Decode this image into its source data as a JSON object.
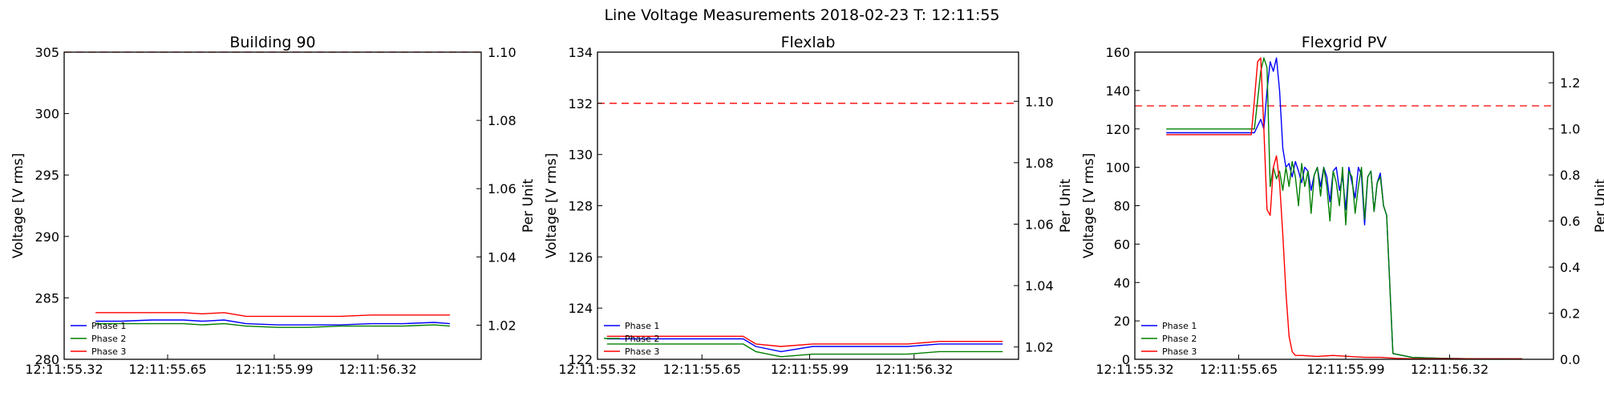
{
  "figure": {
    "title": "Line Voltage Measurements 2018-02-23 T: 12:11:55"
  },
  "chart_data": [
    {
      "type": "line",
      "title": "Building 90",
      "ylabel": "Voltage [V rms]",
      "y2label": "Per Unit",
      "xlim": [
        55.32,
        56.65
      ],
      "ylim": [
        280,
        305
      ],
      "y2lim": [
        1.01,
        1.1
      ],
      "xticks": [
        55.32,
        55.65,
        55.99,
        56.32
      ],
      "xticklabels": [
        "12:11:55.32",
        "12:11:55.65",
        "12:11:55.99",
        "12:11:56.32"
      ],
      "yticks": [
        280,
        285,
        290,
        295,
        300,
        305
      ],
      "y2ticks": [
        1.02,
        1.04,
        1.06,
        1.08,
        1.1
      ],
      "y2ticklabels": [
        "1.02",
        "1.04",
        "1.06",
        "1.08",
        "1.10"
      ],
      "reference_line": {
        "y": 305.0,
        "color": "#ff0000",
        "style": "dashed"
      },
      "legend": {
        "placement": "lower-left"
      },
      "series": [
        {
          "name": "Phase 1",
          "color": "#0000ff",
          "x": [
            55.42,
            55.5,
            55.6,
            55.7,
            55.76,
            55.83,
            55.9,
            56.0,
            56.1,
            56.2,
            56.3,
            56.4,
            56.5,
            56.55
          ],
          "y": [
            283.1,
            283.1,
            283.2,
            283.2,
            283.1,
            283.2,
            282.9,
            282.8,
            282.8,
            282.8,
            282.9,
            282.9,
            283.0,
            282.9
          ]
        },
        {
          "name": "Phase 2",
          "color": "#008000",
          "x": [
            55.42,
            55.5,
            55.6,
            55.7,
            55.76,
            55.83,
            55.9,
            56.0,
            56.1,
            56.2,
            56.3,
            56.4,
            56.5,
            56.55
          ],
          "y": [
            282.9,
            282.9,
            282.9,
            282.9,
            282.8,
            282.9,
            282.7,
            282.6,
            282.6,
            282.7,
            282.7,
            282.7,
            282.8,
            282.7
          ]
        },
        {
          "name": "Phase 3",
          "color": "#ff0000",
          "x": [
            55.42,
            55.5,
            55.6,
            55.7,
            55.76,
            55.83,
            55.9,
            56.0,
            56.1,
            56.2,
            56.3,
            56.4,
            56.5,
            56.55
          ],
          "y": [
            283.8,
            283.8,
            283.8,
            283.8,
            283.7,
            283.8,
            283.5,
            283.5,
            283.5,
            283.5,
            283.6,
            283.6,
            283.6,
            283.6
          ]
        }
      ]
    },
    {
      "type": "line",
      "title": "Flexlab",
      "ylabel": "Voltage [V rms]",
      "y2label": "Per Unit",
      "xlim": [
        55.32,
        56.65
      ],
      "ylim": [
        122,
        134
      ],
      "y2lim": [
        1.016,
        1.116
      ],
      "xticks": [
        55.32,
        55.65,
        55.99,
        56.32
      ],
      "xticklabels": [
        "12:11:55.32",
        "12:11:55.65",
        "12:11:55.99",
        "12:11:56.32"
      ],
      "yticks": [
        122,
        124,
        126,
        128,
        130,
        132,
        134
      ],
      "y2ticks": [
        1.02,
        1.04,
        1.06,
        1.08,
        1.1
      ],
      "y2ticklabels": [
        "1.02",
        "1.04",
        "1.06",
        "1.08",
        "1.10"
      ],
      "reference_line": {
        "y": 132.0,
        "color": "#ff0000",
        "style": "dashed"
      },
      "legend": {
        "placement": "lower-left"
      },
      "series": [
        {
          "name": "Phase 1",
          "color": "#0000ff",
          "x": [
            55.35,
            55.45,
            55.55,
            55.65,
            55.72,
            55.78,
            55.82,
            55.9,
            56.0,
            56.1,
            56.2,
            56.3,
            56.4,
            56.5,
            56.6
          ],
          "y": [
            122.8,
            122.8,
            122.8,
            122.8,
            122.8,
            122.8,
            122.5,
            122.3,
            122.5,
            122.5,
            122.5,
            122.5,
            122.6,
            122.6,
            122.6
          ]
        },
        {
          "name": "Phase 2",
          "color": "#008000",
          "x": [
            55.35,
            55.45,
            55.55,
            55.65,
            55.72,
            55.78,
            55.82,
            55.9,
            56.0,
            56.1,
            56.2,
            56.3,
            56.4,
            56.5,
            56.6
          ],
          "y": [
            122.6,
            122.6,
            122.6,
            122.6,
            122.6,
            122.6,
            122.3,
            122.1,
            122.2,
            122.2,
            122.2,
            122.2,
            122.3,
            122.3,
            122.3
          ]
        },
        {
          "name": "Phase 3",
          "color": "#ff0000",
          "x": [
            55.35,
            55.45,
            55.55,
            55.65,
            55.72,
            55.78,
            55.82,
            55.9,
            56.0,
            56.1,
            56.2,
            56.3,
            56.4,
            56.5,
            56.6
          ],
          "y": [
            122.9,
            122.9,
            122.9,
            122.9,
            122.9,
            122.9,
            122.6,
            122.5,
            122.6,
            122.6,
            122.6,
            122.6,
            122.7,
            122.7,
            122.7
          ]
        }
      ]
    },
    {
      "type": "line",
      "title": "Flexgrid PV",
      "ylabel": "Voltage [V rms]",
      "y2label": "Per Unit",
      "xlim": [
        55.32,
        56.65
      ],
      "ylim": [
        0,
        160
      ],
      "y2lim": [
        0.0,
        1.333
      ],
      "xticks": [
        55.32,
        55.65,
        55.99,
        56.32
      ],
      "xticklabels": [
        "12:11:55.32",
        "12:11:55.65",
        "12:11:55.99",
        "12:11:56.32"
      ],
      "yticks": [
        0,
        20,
        40,
        60,
        80,
        100,
        120,
        140,
        160
      ],
      "y2ticks": [
        0.0,
        0.2,
        0.4,
        0.6,
        0.8,
        1.0,
        1.2
      ],
      "y2ticklabels": [
        "0.0",
        "0.2",
        "0.4",
        "0.6",
        "0.8",
        "1.0",
        "1.2"
      ],
      "reference_line": {
        "y": 132.0,
        "color": "#ff0000",
        "style": "dashed"
      },
      "legend": {
        "placement": "lower-left"
      },
      "series": [
        {
          "name": "Phase 1",
          "color": "#0000ff",
          "x": [
            55.42,
            55.6,
            55.7,
            55.72,
            55.73,
            55.74,
            55.75,
            55.76,
            55.77,
            55.78,
            55.79,
            55.8,
            55.81,
            55.82,
            55.83,
            55.84,
            55.85,
            55.86,
            55.87,
            55.88,
            55.89,
            55.9,
            55.91,
            55.92,
            55.93,
            55.94,
            55.95,
            55.96,
            55.97,
            55.98,
            55.99,
            56.0,
            56.01,
            56.02,
            56.03,
            56.04,
            56.05,
            56.06,
            56.07,
            56.08,
            56.09,
            56.1,
            56.11,
            56.12,
            56.14,
            56.2,
            56.3,
            56.4,
            56.55
          ],
          "y": [
            118,
            118,
            118,
            125,
            120,
            140,
            155,
            150,
            157,
            140,
            110,
            100,
            102,
            95,
            103,
            98,
            92,
            100,
            98,
            88,
            96,
            100,
            90,
            100,
            95,
            82,
            98,
            100,
            88,
            95,
            78,
            100,
            92,
            84,
            100,
            96,
            70,
            95,
            98,
            77,
            92,
            97,
            80,
            75,
            3,
            1,
            0.5,
            0.3,
            0.2
          ]
        },
        {
          "name": "Phase 2",
          "color": "#008000",
          "x": [
            55.42,
            55.6,
            55.7,
            55.71,
            55.72,
            55.73,
            55.74,
            55.75,
            55.76,
            55.77,
            55.78,
            55.79,
            55.8,
            55.81,
            55.82,
            55.83,
            55.84,
            55.85,
            55.86,
            55.87,
            55.88,
            55.89,
            55.9,
            55.91,
            55.92,
            55.93,
            55.94,
            55.95,
            55.96,
            55.97,
            55.98,
            55.99,
            56.0,
            56.01,
            56.02,
            56.03,
            56.04,
            56.05,
            56.06,
            56.07,
            56.08,
            56.09,
            56.1,
            56.11,
            56.12,
            56.14,
            56.2,
            56.3,
            56.4,
            56.55
          ],
          "y": [
            120,
            120,
            120,
            135,
            150,
            157,
            152,
            90,
            100,
            94,
            98,
            88,
            100,
            90,
            103,
            95,
            80,
            102,
            90,
            98,
            76,
            96,
            100,
            85,
            100,
            90,
            72,
            98,
            92,
            80,
            100,
            70,
            98,
            95,
            76,
            90,
            100,
            73,
            95,
            98,
            77,
            92,
            95,
            80,
            75,
            3,
            1,
            0.5,
            0.3,
            0.2
          ]
        },
        {
          "name": "Phase 3",
          "color": "#ff0000",
          "x": [
            55.42,
            55.6,
            55.69,
            55.7,
            55.71,
            55.72,
            55.73,
            55.74,
            55.75,
            55.76,
            55.77,
            55.78,
            55.79,
            55.8,
            55.81,
            55.82,
            55.83,
            55.85,
            55.9,
            55.95,
            56.0,
            56.05,
            56.1,
            56.15,
            56.2,
            56.3,
            56.4,
            56.55
          ],
          "y": [
            117,
            117,
            117,
            135,
            155,
            157,
            120,
            78,
            75,
            100,
            106,
            92,
            65,
            35,
            12,
            4,
            2,
            2,
            1.5,
            2,
            1.5,
            1,
            1,
            0.5,
            0.3,
            0.3,
            0.2,
            0.2
          ]
        }
      ]
    }
  ]
}
